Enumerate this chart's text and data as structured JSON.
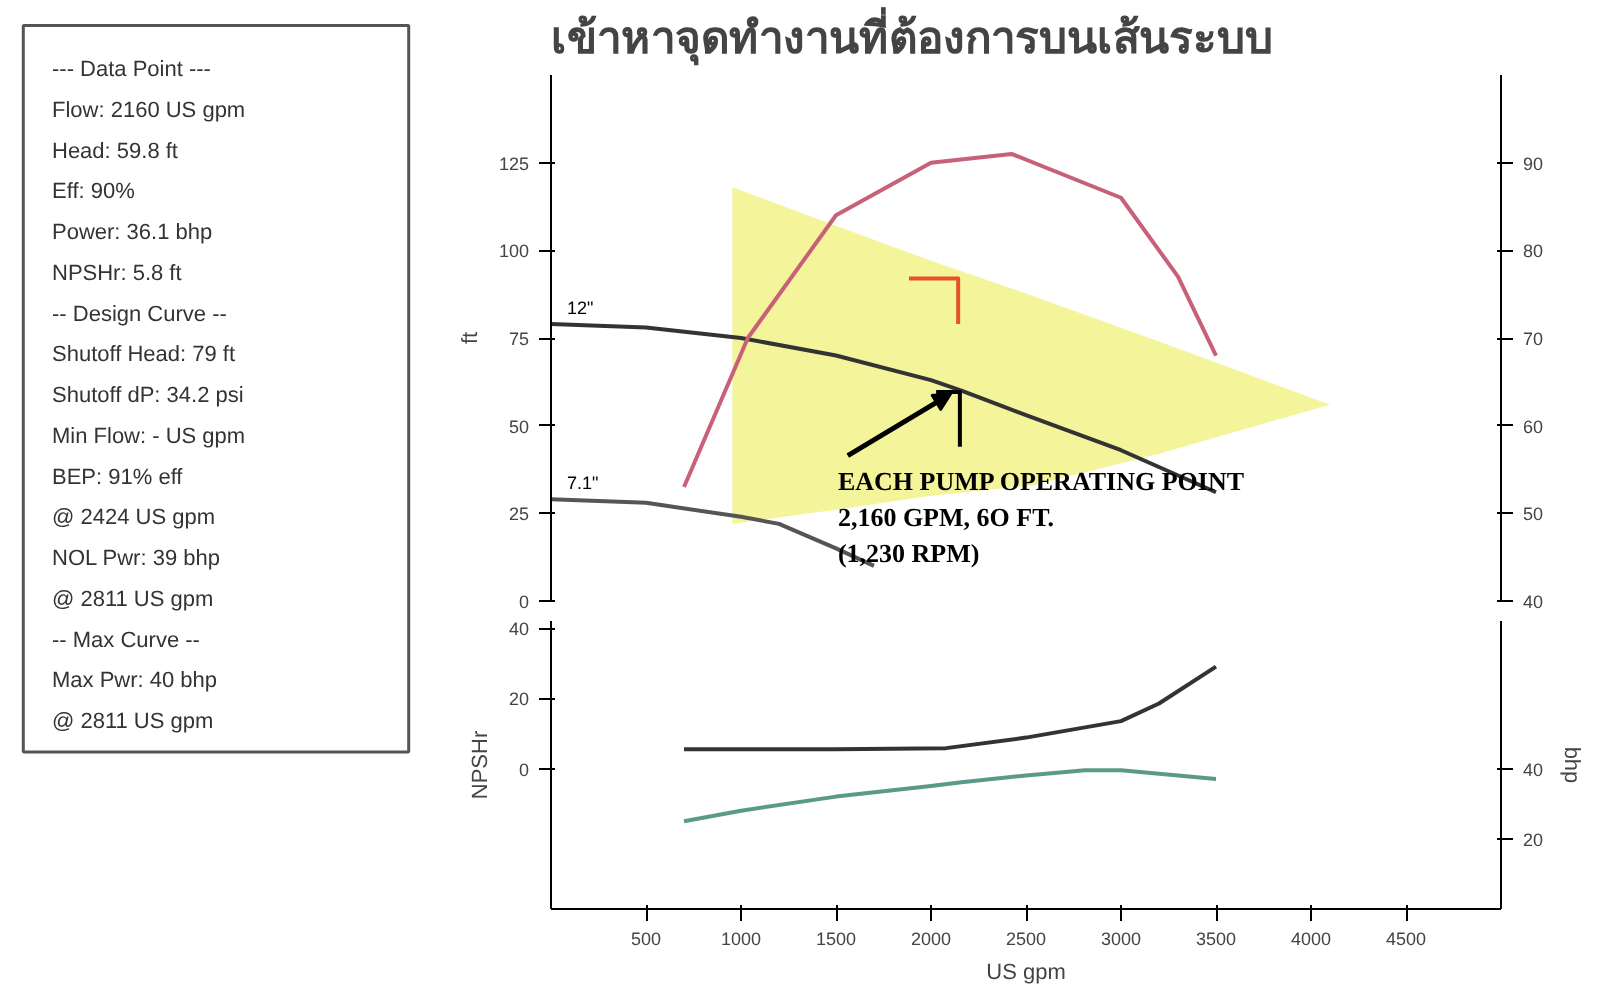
{
  "chart_data": [
    {
      "type": "other",
      "annotations": [
        "--- Data Point ---",
        "Flow: 2160 US gpm",
        "Head: 59.8 ft",
        "Eff: 90%",
        "Power: 36.1 bhp",
        "NPSHr: 5.8 ft",
        "-- Design Curve --",
        "Shutoff Head: 79 ft",
        "Shutoff dP: 34.2 psi",
        "Min Flow:  - US gpm",
        "BEP: 91% eff",
        "@ 2424 US gpm",
        "NOL Pwr: 39 bhp",
        "@ 2811 US gpm",
        "-- Max Curve --",
        "Max Pwr: 40 bhp",
        "@ 2811 US gpm"
      ]
    },
    {
      "type": "line",
      "title": "เข้าหาจุดทำงานที่ต้องการบนเส้นระบบ",
      "ylabel": "ft",
      "xlim": [
        0,
        5000
      ],
      "ylim": [
        0,
        150
      ],
      "yticks": [
        0,
        25,
        50,
        75,
        100,
        125
      ],
      "y2lim": [
        40,
        100
      ],
      "y2ticks": [
        40,
        50,
        60,
        70,
        80,
        90
      ],
      "tick_labels": "y",
      "grid": false,
      "series": [
        {
          "type": "area",
          "color": "#f2f28a",
          "x": [
            955,
            1500,
            2000,
            2536,
            3200,
            4100,
            3200,
            2536,
            2000,
            1500,
            955
          ],
          "values": [
            118,
            107,
            97,
            87,
            74,
            56,
            42,
            33,
            30,
            26,
            22
          ]
        },
        {
          "name": "12\"",
          "color": "#333333",
          "x": [
            0,
            500,
            1000,
            1500,
            2000,
            2160,
            2500,
            3000,
            3500
          ],
          "values": [
            79,
            78,
            75,
            70,
            63,
            60,
            53,
            43,
            31
          ]
        },
        {
          "name": "7.1\"",
          "color": "#555555",
          "x": [
            0,
            500,
            1000,
            1200,
            1500,
            1700
          ],
          "values": [
            29,
            28,
            24,
            22,
            15,
            10
          ]
        },
        {
          "color": "#c8607a",
          "axis": "y2",
          "x": [
            700,
            1036,
            1500,
            2000,
            2424,
            3000,
            3300,
            3500
          ],
          "values": [
            53,
            70,
            84,
            90,
            91,
            86,
            77,
            68
          ]
        },
        {
          "color": "#e8502a",
          "x": [
            1884,
            2143,
            2143
          ],
          "values": [
            92,
            92,
            79
          ]
        },
        {
          "color": "#000000",
          "x": [
            2027,
            2152,
            2152
          ],
          "values": [
            59.6,
            59.6,
            44
          ]
        }
      ],
      "annotations": [
        {
          "text": "EACH PUMP OPERATING POINT\n2,160 GPM, 6O FT.\n(1,230 RPM)",
          "x": 2160,
          "y": 60
        }
      ]
    },
    {
      "type": "line",
      "xlabel": "US gpm",
      "ylabel": "NPSHr",
      "y2label": "bhp",
      "xlim": [
        0,
        5000
      ],
      "xticks": [
        500,
        1000,
        1500,
        2000,
        2500,
        3000,
        3500,
        4000,
        4500
      ],
      "ylim": [
        -40,
        42
      ],
      "yticks": [
        0,
        20,
        40
      ],
      "y2lim": [
        0,
        82
      ],
      "y2ticks": [
        20,
        40
      ],
      "grid": false,
      "series": [
        {
          "color": "#333333",
          "x": [
            700,
            1500,
            2080,
            2500,
            3000,
            3200,
            3500
          ],
          "values": [
            5.5,
            5.5,
            5.8,
            8.8,
            13.5,
            18.5,
            29
          ]
        },
        {
          "color": "#5a9a8a",
          "axis": "y2",
          "x": [
            700,
            1000,
            1500,
            2000,
            2160,
            2500,
            2811,
            3000,
            3500
          ],
          "values": [
            25,
            28,
            32,
            35,
            36.1,
            38,
            39.5,
            39.5,
            37
          ]
        }
      ]
    }
  ]
}
